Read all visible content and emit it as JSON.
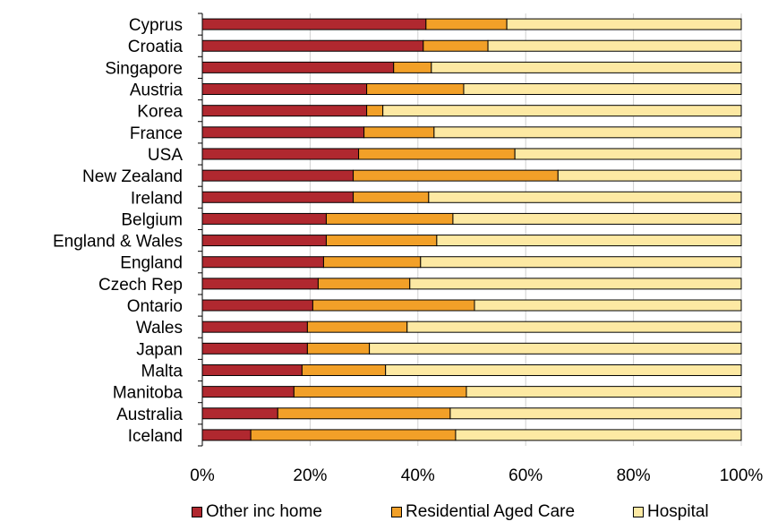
{
  "chart_data": {
    "type": "bar",
    "orientation": "horizontal",
    "stacked": true,
    "stacked_percent": true,
    "categories": [
      "Cyprus",
      "Croatia",
      "Singapore",
      "Austria",
      "Korea",
      "France",
      "USA",
      "New Zealand",
      "Ireland",
      "Belgium",
      "England & Wales",
      "England",
      "Czech Rep",
      "Ontario",
      "Wales",
      "Japan",
      "Malta",
      "Manitoba",
      "Australia",
      "Iceland"
    ],
    "series": [
      {
        "name": "Other inc home",
        "color": "#b0282f",
        "values": [
          41.5,
          41,
          35.5,
          30.5,
          30.5,
          30,
          29,
          28,
          28,
          23,
          23,
          22.5,
          21.5,
          20.5,
          19.5,
          19.5,
          18.5,
          17,
          14,
          9
        ]
      },
      {
        "name": "Residential Aged Care",
        "color": "#f2a028",
        "values": [
          15,
          12,
          7,
          18,
          3,
          13,
          29,
          38,
          14,
          23.5,
          20.5,
          18,
          17,
          30,
          18.5,
          11.5,
          15.5,
          32,
          32,
          38
        ]
      },
      {
        "name": "Hospital",
        "color": "#fde9a3",
        "values": [
          43.5,
          47,
          57.5,
          51.5,
          66.5,
          57,
          42,
          34,
          58,
          53.5,
          56.5,
          59.5,
          61.5,
          49.5,
          62,
          69,
          66,
          51,
          54,
          53
        ]
      }
    ],
    "xlim": [
      0,
      100
    ],
    "x_ticks": [
      "0%",
      "20%",
      "40%",
      "60%",
      "80%",
      "100%"
    ],
    "grid": true,
    "legend_position": "bottom",
    "title": "",
    "xlabel": "",
    "ylabel": ""
  }
}
